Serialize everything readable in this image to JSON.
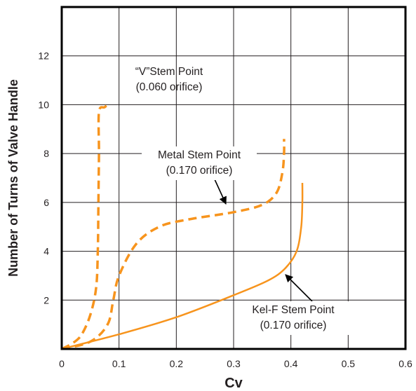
{
  "chart_data": {
    "type": "line",
    "title": "",
    "xlabel": "Cv",
    "ylabel": "Number of Turns of Valve Handle",
    "xlim": [
      0,
      0.6
    ],
    "ylim": [
      0,
      14
    ],
    "x_ticks": [
      "0",
      "0.1",
      "0.2",
      "0.3",
      "0.4",
      "0.5",
      "0.6"
    ],
    "y_ticks": [
      "2",
      "4",
      "6",
      "8",
      "10",
      "12"
    ],
    "grid": true,
    "colors": {
      "series": "#f7941d",
      "grid": "#231f20",
      "text": "#231f20"
    },
    "series": [
      {
        "style": "dashed",
        "points": [
          [
            0.0,
            0.0
          ],
          [
            0.02,
            0.25
          ],
          [
            0.035,
            0.6
          ],
          [
            0.05,
            1.4
          ],
          [
            0.06,
            2.5
          ],
          [
            0.063,
            4.0
          ],
          [
            0.064,
            6.0
          ],
          [
            0.065,
            8.0
          ],
          [
            0.065,
            9.7
          ],
          [
            0.075,
            9.9
          ],
          [
            0.083,
            10.05
          ]
        ]
      },
      {
        "style": "dashed",
        "points": [
          [
            0.0,
            0.0
          ],
          [
            0.05,
            0.3
          ],
          [
            0.08,
            1.0
          ],
          [
            0.09,
            2.0
          ],
          [
            0.1,
            3.0
          ],
          [
            0.13,
            4.3
          ],
          [
            0.17,
            5.0
          ],
          [
            0.22,
            5.3
          ],
          [
            0.3,
            5.6
          ],
          [
            0.35,
            5.9
          ],
          [
            0.375,
            6.4
          ],
          [
            0.385,
            7.2
          ],
          [
            0.388,
            8.0
          ],
          [
            0.388,
            8.6
          ]
        ]
      },
      {
        "style": "solid",
        "points": [
          [
            0.0,
            0.0
          ],
          [
            0.1,
            0.6
          ],
          [
            0.2,
            1.3
          ],
          [
            0.3,
            2.2
          ],
          [
            0.36,
            2.8
          ],
          [
            0.39,
            3.3
          ],
          [
            0.41,
            4.0
          ],
          [
            0.418,
            5.0
          ],
          [
            0.42,
            6.0
          ],
          [
            0.42,
            6.8
          ]
        ]
      }
    ],
    "annotations": [
      {
        "lines": [
          "“V”Stem Point",
          "(0.060 orifice)"
        ]
      },
      {
        "lines": [
          "Metal Stem Point",
          "(0.170 orifice)"
        ]
      },
      {
        "lines": [
          "Kel-F Stem Point",
          "(0.170 orifice)"
        ]
      }
    ]
  }
}
